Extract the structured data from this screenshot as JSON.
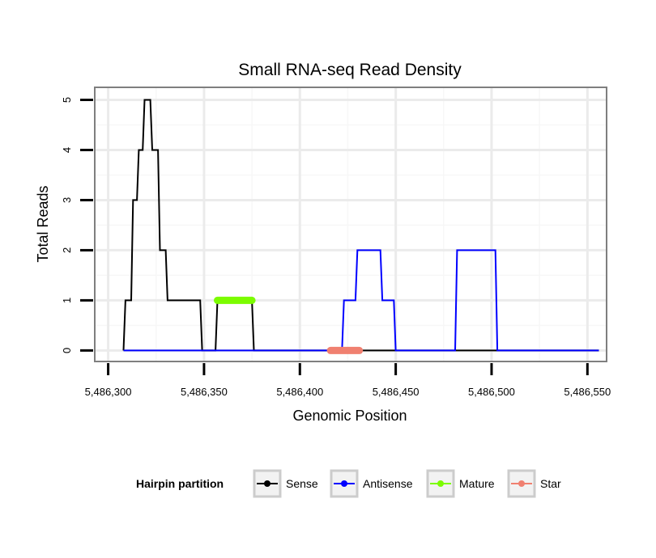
{
  "chart_data": {
    "type": "line",
    "title": "Small RNA-seq Read Density",
    "xlabel": "Genomic Position",
    "ylabel": "Total Reads",
    "xlim": [
      5486293,
      5486560
    ],
    "ylim": [
      -0.22,
      5.25
    ],
    "x_ticks": [
      5486300,
      5486350,
      5486400,
      5486450,
      5486500,
      5486550
    ],
    "x_tick_labels": [
      "5,486,300",
      "5,486,350",
      "5,486,400",
      "5,486,450",
      "5,486,500",
      "5,486,550"
    ],
    "y_ticks": [
      0,
      1,
      2,
      3,
      4,
      5
    ],
    "y_tick_labels": [
      "0",
      "1",
      "2",
      "3",
      "4",
      "5"
    ],
    "grid": true,
    "legend": {
      "title": "Hairpin partition",
      "position": "bottom",
      "entries": [
        {
          "name": "Sense",
          "color": "#000000"
        },
        {
          "name": "Antisense",
          "color": "#0000ff"
        },
        {
          "name": "Mature",
          "color": "#7cfc00"
        },
        {
          "name": "Star",
          "color": "#f08070"
        }
      ]
    },
    "series": [
      {
        "name": "Sense",
        "color": "#000000",
        "x": [
          5486308,
          5486309,
          5486312,
          5486313,
          5486315,
          5486316,
          5486318,
          5486319,
          5486322,
          5486323,
          5486326,
          5486327,
          5486330,
          5486331,
          5486333,
          5486334,
          5486341,
          5486342,
          5486348,
          5486349,
          5486356,
          5486357,
          5486375,
          5486376,
          5486556
        ],
        "y": [
          0,
          1,
          1,
          3,
          3,
          4,
          4,
          5,
          5,
          4,
          4,
          2,
          2,
          1,
          1,
          1,
          1,
          1,
          1,
          0,
          0,
          1,
          1,
          0,
          0
        ]
      },
      {
        "name": "Antisense",
        "color": "#0000ff",
        "x": [
          5486308,
          5486422,
          5486423,
          5486429,
          5486430,
          5486442,
          5486443,
          5486449,
          5486450,
          5486481,
          5486482,
          5486502,
          5486503,
          5486556
        ],
        "y": [
          0,
          0,
          1,
          1,
          2,
          2,
          1,
          1,
          0,
          0,
          2,
          2,
          0,
          0
        ]
      },
      {
        "name": "Mature",
        "color": "#7cfc00",
        "x": [
          5486357,
          5486375
        ],
        "y": [
          1,
          1
        ]
      },
      {
        "name": "Star",
        "color": "#f08070",
        "x": [
          5486416,
          5486431
        ],
        "y": [
          0,
          0
        ]
      }
    ]
  }
}
